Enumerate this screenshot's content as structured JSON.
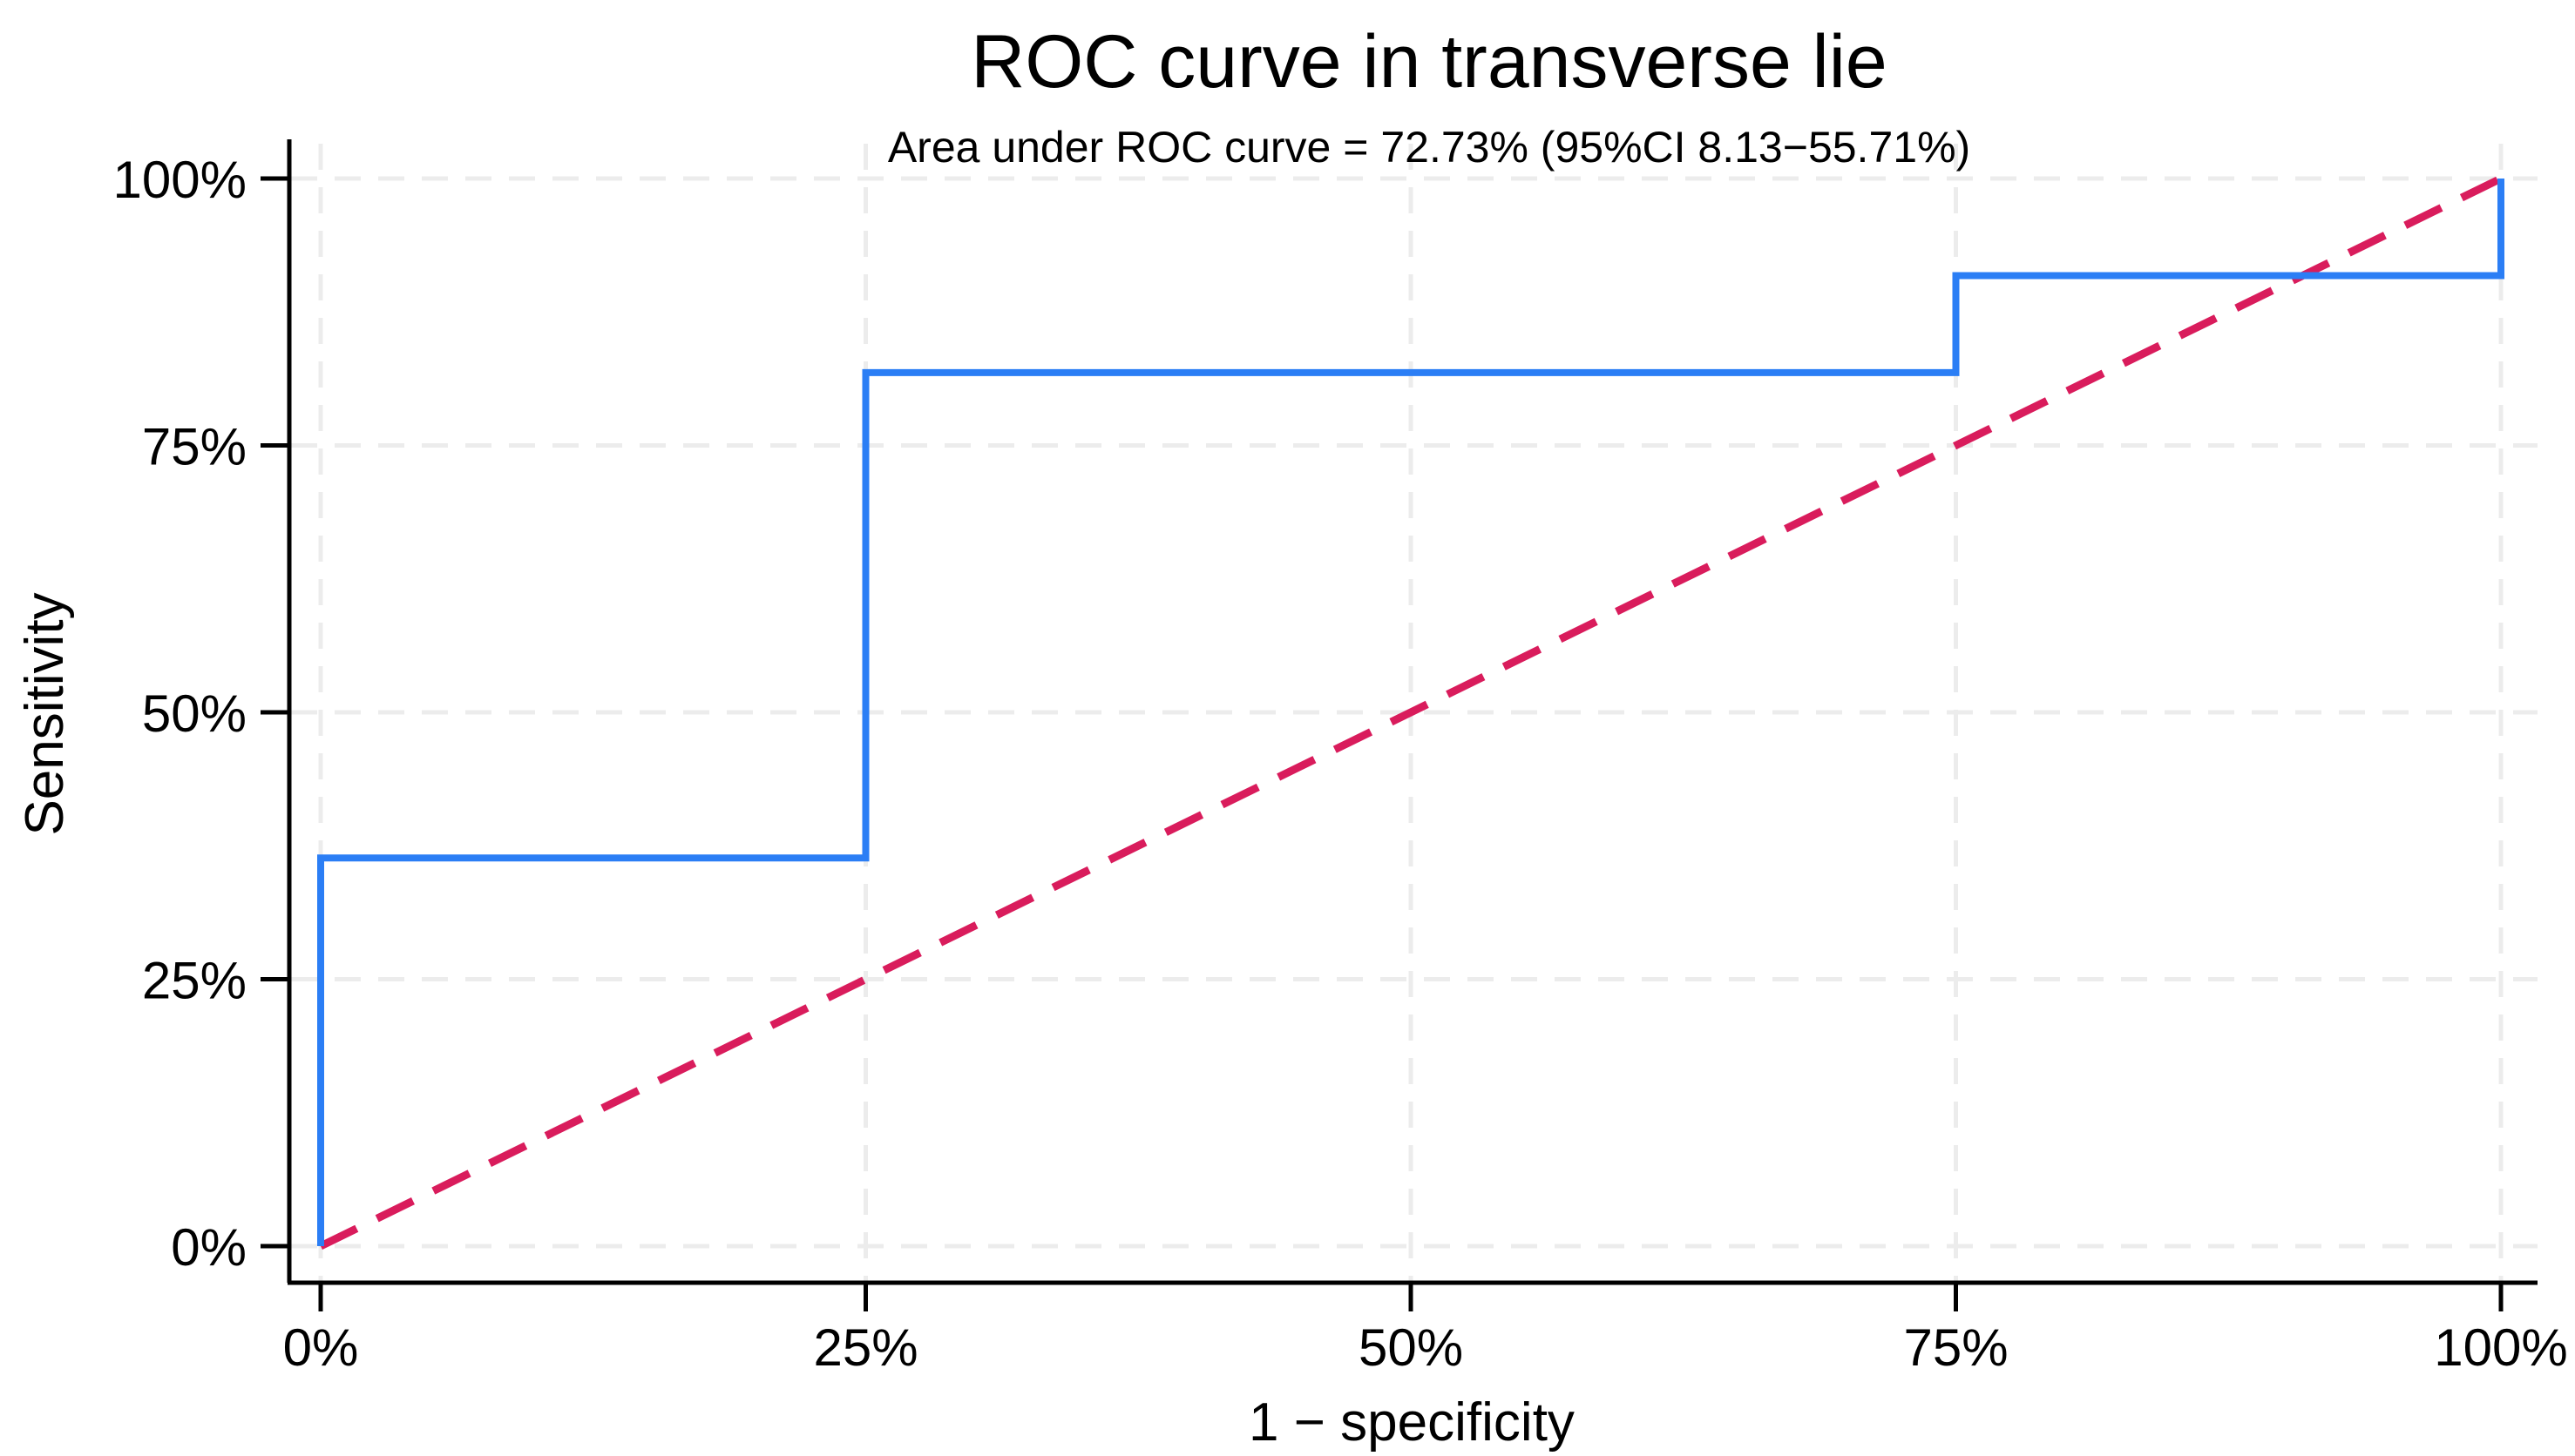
{
  "figure": {
    "background": "#ffffff"
  },
  "chart_data": {
    "type": "line",
    "subtype": "roc-step",
    "title": "ROC curve in transverse lie",
    "subtitle": "Area under ROC curve = 72.73% (95%CI 8.13−55.71%)",
    "auc_percent": "72.73%",
    "ci_percent": "8.13−55.71%",
    "xlabel": "1 − specificity",
    "ylabel": "Sensitivity",
    "xlim": [
      0,
      100
    ],
    "ylim": [
      0,
      100
    ],
    "grid": true,
    "legend": "none",
    "x_ticks": {
      "values": [
        0,
        25,
        50,
        75,
        100
      ],
      "labels": [
        "0%",
        "25%",
        "50%",
        "75%",
        "100%"
      ]
    },
    "y_ticks": {
      "values": [
        0,
        25,
        50,
        75,
        100
      ],
      "labels": [
        "0%",
        "25%",
        "50%",
        "75%",
        "100%"
      ]
    },
    "series": [
      {
        "name": "ROC curve",
        "style": "solid",
        "color": "#2b7ef5",
        "x": [
          0,
          0,
          25,
          25,
          75,
          75,
          100,
          100
        ],
        "y": [
          0,
          36.36,
          36.36,
          81.82,
          81.82,
          90.91,
          90.91,
          100
        ]
      },
      {
        "name": "Reference diagonal",
        "style": "dashed",
        "color": "#d91c5c",
        "x": [
          0,
          100
        ],
        "y": [
          0,
          100
        ]
      }
    ],
    "colors": {
      "axis": "#000000",
      "gridline": "#ececec",
      "roc_line": "#2b7ef5",
      "reference_line": "#d91c5c",
      "text": "#000000"
    }
  }
}
